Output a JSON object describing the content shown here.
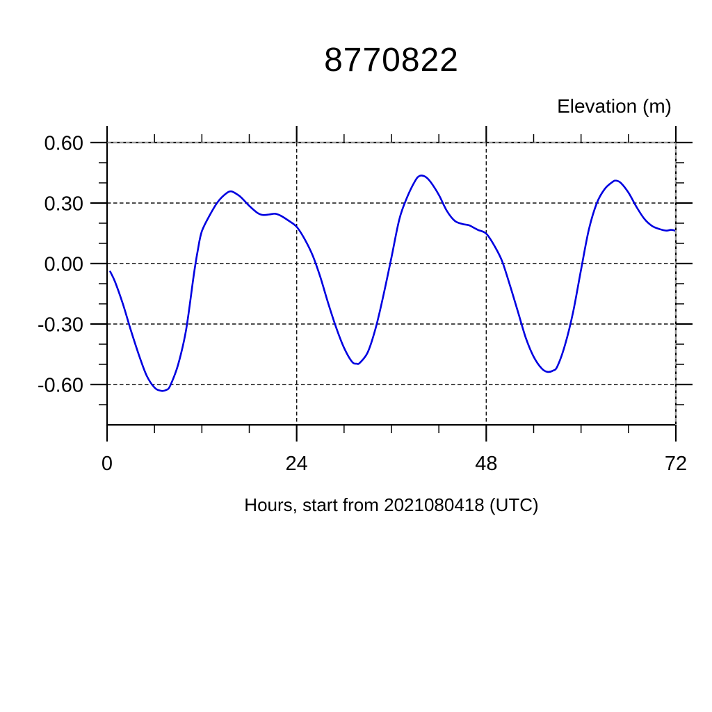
{
  "page": {
    "background": "#ffffff"
  },
  "chart_data": {
    "type": "line",
    "title": "8770822",
    "xlabel": "Hours, start from 2021080418 (UTC)",
    "ylabel": "Elevation (m)",
    "xlim": [
      0,
      72
    ],
    "ylim": [
      -0.8,
      0.6
    ],
    "x_tick_labels": [
      "0",
      "24",
      "48",
      "72"
    ],
    "x_major_ticks": [
      0,
      24,
      48,
      72
    ],
    "x_minor_tick_interval": 6,
    "y_tick_labels": [
      "0.60",
      "0.30",
      "0.00",
      "-0.30",
      "-0.60"
    ],
    "y_major_ticks": [
      0.6,
      0.3,
      0.0,
      -0.3,
      -0.6
    ],
    "y_minor_tick_interval": 0.1,
    "grid": "dashed horizontal lines at y majors; dashed vertical lines at x=24,48",
    "legend": "none",
    "line_color": "#0000e0",
    "series": [
      {
        "name": "elevation",
        "points": [
          [
            0.4,
            -0.04
          ],
          [
            1,
            -0.09
          ],
          [
            2,
            -0.2
          ],
          [
            3,
            -0.33
          ],
          [
            4,
            -0.45
          ],
          [
            5,
            -0.555
          ],
          [
            6,
            -0.615
          ],
          [
            6.8,
            -0.631
          ],
          [
            7.5,
            -0.627
          ],
          [
            8,
            -0.605
          ],
          [
            9,
            -0.5
          ],
          [
            10,
            -0.33
          ],
          [
            11,
            -0.05
          ],
          [
            11.5,
            0.07
          ],
          [
            12,
            0.16
          ],
          [
            13,
            0.24
          ],
          [
            14,
            0.305
          ],
          [
            15,
            0.345
          ],
          [
            15.7,
            0.358
          ],
          [
            16.5,
            0.342
          ],
          [
            17,
            0.327
          ],
          [
            18,
            0.286
          ],
          [
            19,
            0.252
          ],
          [
            19.7,
            0.241
          ],
          [
            20.5,
            0.243
          ],
          [
            21.3,
            0.247
          ],
          [
            22,
            0.237
          ],
          [
            23,
            0.212
          ],
          [
            24,
            0.182
          ],
          [
            25,
            0.122
          ],
          [
            26,
            0.042
          ],
          [
            27,
            -0.068
          ],
          [
            28,
            -0.198
          ],
          [
            29,
            -0.318
          ],
          [
            30,
            -0.418
          ],
          [
            31,
            -0.487
          ],
          [
            31.6,
            -0.497
          ],
          [
            32,
            -0.492
          ],
          [
            33,
            -0.44
          ],
          [
            34,
            -0.32
          ],
          [
            35,
            -0.155
          ],
          [
            36,
            0.03
          ],
          [
            37,
            0.22
          ],
          [
            38,
            0.33
          ],
          [
            39,
            0.41
          ],
          [
            39.6,
            0.435
          ],
          [
            40.3,
            0.43
          ],
          [
            41,
            0.402
          ],
          [
            42,
            0.34
          ],
          [
            43,
            0.262
          ],
          [
            44,
            0.212
          ],
          [
            45,
            0.196
          ],
          [
            45.8,
            0.19
          ],
          [
            46.5,
            0.176
          ],
          [
            47,
            0.166
          ],
          [
            48,
            0.148
          ],
          [
            49,
            0.09
          ],
          [
            50,
            0.012
          ],
          [
            51,
            -0.108
          ],
          [
            52,
            -0.238
          ],
          [
            53,
            -0.368
          ],
          [
            54,
            -0.462
          ],
          [
            55,
            -0.52
          ],
          [
            55.7,
            -0.537
          ],
          [
            56.4,
            -0.532
          ],
          [
            57,
            -0.51
          ],
          [
            58,
            -0.4
          ],
          [
            59,
            -0.24
          ],
          [
            60,
            -0.03
          ],
          [
            61,
            0.17
          ],
          [
            62,
            0.3
          ],
          [
            63,
            0.37
          ],
          [
            64,
            0.405
          ],
          [
            64.4,
            0.411
          ],
          [
            65,
            0.401
          ],
          [
            66,
            0.352
          ],
          [
            67,
            0.282
          ],
          [
            68,
            0.222
          ],
          [
            69,
            0.186
          ],
          [
            70,
            0.17
          ],
          [
            70.8,
            0.163
          ],
          [
            71.4,
            0.167
          ],
          [
            72,
            0.162
          ]
        ]
      }
    ]
  }
}
